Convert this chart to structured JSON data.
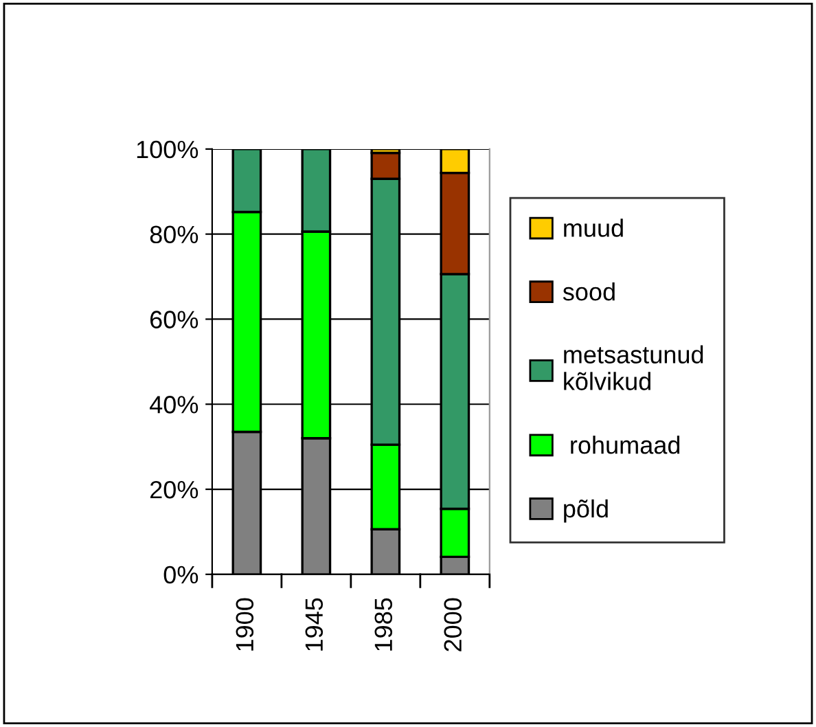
{
  "chart_data": {
    "type": "bar",
    "stacked": true,
    "categories": [
      "1900",
      "1945",
      "1985",
      "2000"
    ],
    "series": [
      {
        "name": "põld",
        "color": "#808080",
        "values": [
          33.5,
          32,
          10.6,
          4.1
        ]
      },
      {
        "name": " rohumaad",
        "color": "#00ff00",
        "values": [
          51.7,
          48.6,
          19.9,
          11.3
        ]
      },
      {
        "name": "metsastunud\nkõlvikud",
        "color": "#339966",
        "values": [
          14.8,
          19.4,
          62.5,
          55.2
        ]
      },
      {
        "name": "sood",
        "color": "#993300",
        "values": [
          null,
          null,
          6.1,
          23.8
        ]
      },
      {
        "name": "muud",
        "color": "#ffcc00",
        "values": [
          null,
          null,
          0.9,
          5.6
        ]
      }
    ],
    "ylim": [
      0,
      100
    ],
    "yticks": [
      {
        "value": 0,
        "label": "0%"
      },
      {
        "value": 20,
        "label": "20%"
      },
      {
        "value": 40,
        "label": "40%"
      },
      {
        "value": 60,
        "label": "60%"
      },
      {
        "value": 80,
        "label": "80%"
      },
      {
        "value": 100,
        "label": "100%"
      }
    ],
    "grid": "y",
    "legend": "right"
  }
}
